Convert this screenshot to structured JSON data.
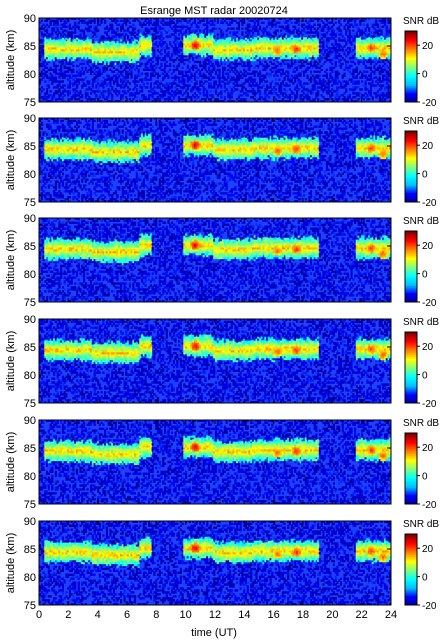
{
  "title": "Esrange MST radar 20020724",
  "chart_data": {
    "type": "heatmap",
    "title": "Esrange MST radar 20020724",
    "xlabel": "time (UT)",
    "ylabel": "altitude (km)",
    "xlim": [
      0,
      24
    ],
    "ylim": [
      75,
      90
    ],
    "x_ticks": [
      "0",
      "2",
      "4",
      "6",
      "8",
      "10",
      "12",
      "14",
      "16",
      "18",
      "20",
      "22",
      "24"
    ],
    "y_ticks": [
      "75",
      "80",
      "85",
      "90"
    ],
    "colorbar": {
      "label": "SNR dB",
      "range": [
        -20,
        30
      ],
      "ticks": [
        "20",
        "0",
        "-20"
      ],
      "colormap": [
        "#00008f",
        "#0000ff",
        "#00bfff",
        "#00ffff",
        "#7fff7f",
        "#ffff00",
        "#ff7f00",
        "#ff0000",
        "#800000"
      ]
    },
    "background_color": "#1e40ff",
    "panel_count": 6,
    "echo_layer": {
      "segments": [
        {
          "t_start": 0.3,
          "t_end": 3.5,
          "altitude_km": 84.3
        },
        {
          "t_start": 3.5,
          "t_end": 6.8,
          "altitude_km": 83.8
        },
        {
          "t_start": 6.8,
          "t_end": 7.6,
          "altitude_km": 85.0
        },
        {
          "t_start": 9.8,
          "t_end": 11.8,
          "altitude_km": 85.0
        },
        {
          "t_start": 11.8,
          "t_end": 14.5,
          "altitude_km": 84.2
        },
        {
          "t_start": 14.5,
          "t_end": 19.0,
          "altitude_km": 84.5
        },
        {
          "t_start": 21.5,
          "t_end": 24.0,
          "altitude_km": 84.5
        }
      ],
      "peak_snr_db": [
        {
          "time": 10.6,
          "altitude_km": 85.0,
          "snr_db": 28
        },
        {
          "time": 16.2,
          "altitude_km": 84.0,
          "snr_db": 22
        },
        {
          "time": 17.5,
          "altitude_km": 84.3,
          "snr_db": 25
        },
        {
          "time": 22.6,
          "altitude_km": 84.5,
          "snr_db": 24
        },
        {
          "time": 23.4,
          "altitude_km": 83.5,
          "snr_db": 22
        }
      ]
    }
  }
}
